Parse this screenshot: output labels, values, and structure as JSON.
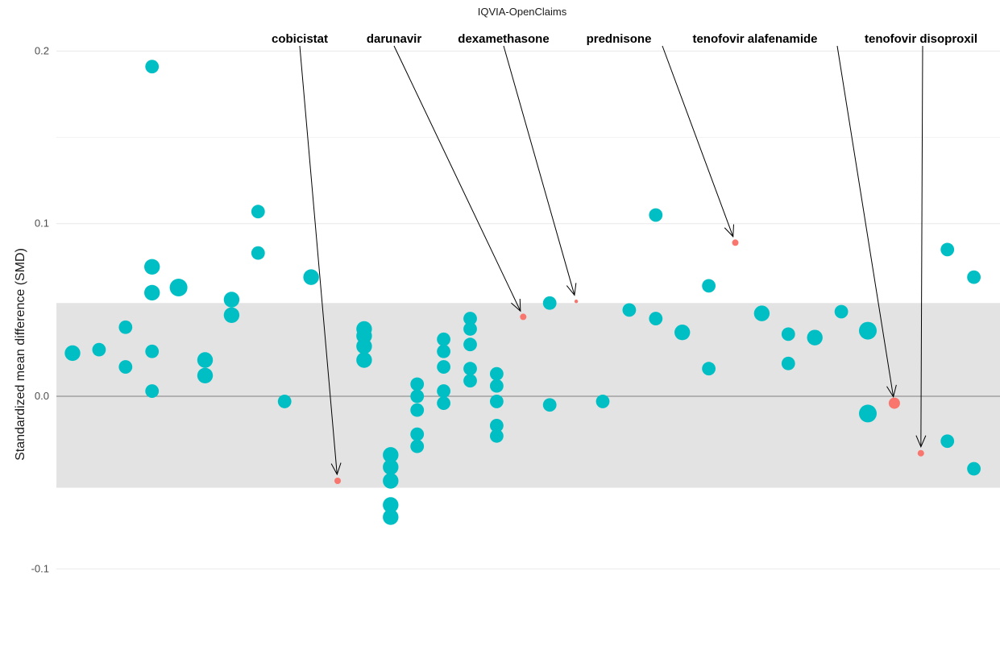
{
  "chart_data": {
    "type": "scatter",
    "title": "IQVIA-OpenClaims",
    "xlabel": "",
    "ylabel": "Standardized mean difference (SMD)",
    "ylim": [
      -0.12,
      0.22
    ],
    "yticks": [
      -0.1,
      0.0,
      0.1,
      0.2
    ],
    "ytick_labels": [
      "-0.1",
      "0.0",
      "0.1",
      "0.2"
    ],
    "band": [
      -0.053,
      0.054
    ],
    "reference_line": 0,
    "grid": "horizontal",
    "colors": {
      "default": "#00BFC4",
      "highlight": "#F8766D",
      "band": "#e3e3e3",
      "zero_line": "#7f7f7f",
      "grid": "#ebebeb"
    },
    "points": [
      {
        "x": 1,
        "y": 0.025,
        "s": 4
      },
      {
        "x": 2,
        "y": 0.027,
        "s": 3
      },
      {
        "x": 3,
        "y": 0.04,
        "s": 3
      },
      {
        "x": 3,
        "y": 0.017,
        "s": 3
      },
      {
        "x": 4,
        "y": 0.191,
        "s": 3
      },
      {
        "x": 4,
        "y": 0.075,
        "s": 4
      },
      {
        "x": 4,
        "y": 0.06,
        "s": 4
      },
      {
        "x": 4,
        "y": 0.026,
        "s": 3
      },
      {
        "x": 4,
        "y": 0.003,
        "s": 3
      },
      {
        "x": 5,
        "y": 0.063,
        "s": 5
      },
      {
        "x": 6,
        "y": 0.021,
        "s": 4
      },
      {
        "x": 6,
        "y": 0.012,
        "s": 4
      },
      {
        "x": 7,
        "y": 0.056,
        "s": 4
      },
      {
        "x": 7,
        "y": 0.047,
        "s": 4
      },
      {
        "x": 8,
        "y": 0.107,
        "s": 3
      },
      {
        "x": 8,
        "y": 0.083,
        "s": 3
      },
      {
        "x": 9,
        "y": -0.003,
        "s": 3
      },
      {
        "x": 10,
        "y": 0.069,
        "s": 4
      },
      {
        "x": 11,
        "y": -0.049,
        "s": 1,
        "hl": true
      },
      {
        "x": 12,
        "y": 0.039,
        "s": 4
      },
      {
        "x": 12,
        "y": 0.035,
        "s": 4
      },
      {
        "x": 12,
        "y": 0.029,
        "s": 4
      },
      {
        "x": 12,
        "y": 0.021,
        "s": 4
      },
      {
        "x": 13,
        "y": -0.034,
        "s": 4
      },
      {
        "x": 13,
        "y": -0.041,
        "s": 4
      },
      {
        "x": 13,
        "y": -0.049,
        "s": 4
      },
      {
        "x": 13,
        "y": -0.063,
        "s": 4
      },
      {
        "x": 13,
        "y": -0.07,
        "s": 4
      },
      {
        "x": 14,
        "y": 0.007,
        "s": 3
      },
      {
        "x": 14,
        "y": 0.0,
        "s": 3
      },
      {
        "x": 14,
        "y": -0.008,
        "s": 3
      },
      {
        "x": 14,
        "y": -0.022,
        "s": 3
      },
      {
        "x": 14,
        "y": -0.029,
        "s": 3
      },
      {
        "x": 15,
        "y": 0.033,
        "s": 3
      },
      {
        "x": 15,
        "y": 0.026,
        "s": 3
      },
      {
        "x": 15,
        "y": 0.017,
        "s": 3
      },
      {
        "x": 15,
        "y": 0.003,
        "s": 3
      },
      {
        "x": 15,
        "y": -0.004,
        "s": 3
      },
      {
        "x": 16,
        "y": 0.045,
        "s": 3
      },
      {
        "x": 16,
        "y": 0.039,
        "s": 3
      },
      {
        "x": 16,
        "y": 0.03,
        "s": 3
      },
      {
        "x": 16,
        "y": 0.016,
        "s": 3
      },
      {
        "x": 16,
        "y": 0.009,
        "s": 3
      },
      {
        "x": 17,
        "y": 0.013,
        "s": 3
      },
      {
        "x": 17,
        "y": 0.006,
        "s": 3
      },
      {
        "x": 17,
        "y": -0.003,
        "s": 3
      },
      {
        "x": 17,
        "y": -0.017,
        "s": 3
      },
      {
        "x": 17,
        "y": -0.023,
        "s": 3
      },
      {
        "x": 18,
        "y": 0.046,
        "s": 1,
        "hl": true
      },
      {
        "x": 19,
        "y": 0.054,
        "s": 3
      },
      {
        "x": 19,
        "y": -0.005,
        "s": 3
      },
      {
        "x": 20,
        "y": 0.055,
        "s": 0.6,
        "hl": true
      },
      {
        "x": 21,
        "y": -0.003,
        "s": 3
      },
      {
        "x": 22,
        "y": 0.05,
        "s": 3
      },
      {
        "x": 23,
        "y": 0.105,
        "s": 3
      },
      {
        "x": 23,
        "y": 0.045,
        "s": 3
      },
      {
        "x": 24,
        "y": 0.037,
        "s": 4
      },
      {
        "x": 25,
        "y": 0.064,
        "s": 3
      },
      {
        "x": 25,
        "y": 0.016,
        "s": 3
      },
      {
        "x": 26,
        "y": 0.089,
        "s": 1,
        "hl": true
      },
      {
        "x": 27,
        "y": 0.048,
        "s": 4
      },
      {
        "x": 28,
        "y": 0.036,
        "s": 3
      },
      {
        "x": 28,
        "y": 0.019,
        "s": 3
      },
      {
        "x": 29,
        "y": 0.034,
        "s": 4
      },
      {
        "x": 30,
        "y": 0.049,
        "s": 3
      },
      {
        "x": 31,
        "y": 0.038,
        "s": 5
      },
      {
        "x": 31,
        "y": -0.01,
        "s": 5
      },
      {
        "x": 32,
        "y": -0.004,
        "s": 3,
        "hl": true
      },
      {
        "x": 33,
        "y": -0.033,
        "s": 1,
        "hl": true
      },
      {
        "x": 34,
        "y": 0.085,
        "s": 3
      },
      {
        "x": 34,
        "y": -0.026,
        "s": 3
      },
      {
        "x": 35,
        "y": 0.069,
        "s": 3
      },
      {
        "x": 35,
        "y": -0.042,
        "s": 3
      }
    ],
    "annotations": [
      {
        "label": "cobicistat",
        "x": 11,
        "y": -0.049
      },
      {
        "label": "darunavir",
        "x": 18,
        "y": 0.046
      },
      {
        "label": "dexamethasone",
        "x": 20,
        "y": 0.055
      },
      {
        "label": "prednisone",
        "x": 26,
        "y": 0.089
      },
      {
        "label": "tenofovir alafenamide",
        "x": 32,
        "y": -0.004
      },
      {
        "label": "tenofovir disoproxil",
        "x": 33,
        "y": -0.033
      }
    ]
  }
}
